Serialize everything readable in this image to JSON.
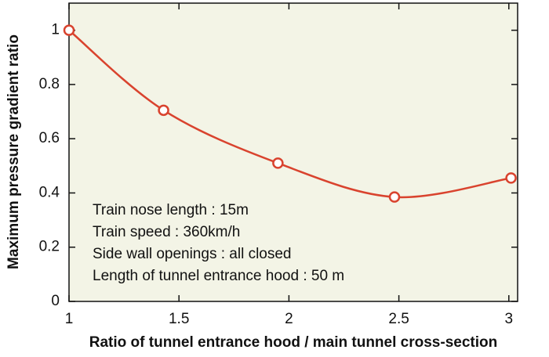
{
  "chart_data": {
    "type": "line",
    "xlabel": "Ratio of tunnel entrance hood / main tunnel cross-section",
    "ylabel": "Maximum pressure gradient ratio",
    "x": [
      1,
      1.43,
      1.95,
      2.48,
      3.01
    ],
    "series": [
      {
        "color": "#d9432e",
        "values": [
          1.0,
          0.705,
          0.51,
          0.385,
          0.455
        ]
      }
    ],
    "xlim": [
      1,
      3.04
    ],
    "xticks": [
      1,
      1.5,
      2,
      2.5,
      3
    ],
    "ylim": [
      0,
      1.1
    ],
    "yticks": [
      0,
      0.2,
      0.4,
      0.6,
      0.8,
      1
    ],
    "annotations": [
      "Train nose length : 15m",
      "Train speed : 360km/h",
      "Side wall openings : all closed",
      "Length of tunnel entrance hood : 50 m"
    ]
  }
}
